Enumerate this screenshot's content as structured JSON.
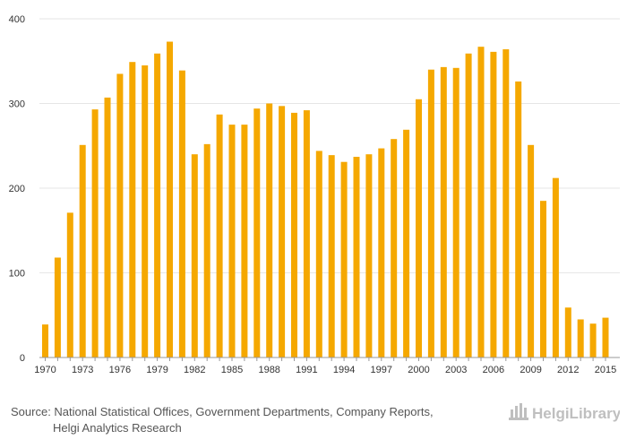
{
  "chart_data": {
    "type": "bar",
    "title": "",
    "xlabel": "",
    "ylabel": "",
    "ylim": [
      0,
      400
    ],
    "yticks": [
      0,
      100,
      200,
      300,
      400
    ],
    "grid": true,
    "bar_color": "#f5a800",
    "categories": [
      1970,
      1971,
      1972,
      1973,
      1974,
      1975,
      1976,
      1977,
      1978,
      1979,
      1980,
      1981,
      1982,
      1983,
      1984,
      1985,
      1986,
      1987,
      1988,
      1989,
      1990,
      1991,
      1992,
      1993,
      1994,
      1995,
      1996,
      1997,
      1998,
      1999,
      2000,
      2001,
      2002,
      2003,
      2004,
      2005,
      2006,
      2007,
      2008,
      2009,
      2010,
      2011,
      2012,
      2013,
      2014,
      2015
    ],
    "values": [
      39,
      118,
      171,
      251,
      293,
      307,
      335,
      349,
      345,
      359,
      373,
      339,
      240,
      252,
      287,
      275,
      275,
      294,
      300,
      297,
      289,
      292,
      244,
      239,
      231,
      237,
      240,
      247,
      258,
      269,
      305,
      340,
      343,
      342,
      359,
      367,
      361,
      364,
      326,
      251,
      185,
      212,
      59,
      45,
      40,
      47
    ],
    "xtick_labels": [
      "1970",
      "1973",
      "1976",
      "1979",
      "1982",
      "1985",
      "1988",
      "1991",
      "1994",
      "1997",
      "2000",
      "2003",
      "2006",
      "2009",
      "2012",
      "2015"
    ]
  },
  "footer": {
    "source_line1": "Source: National Statistical Offices, Government Departments, Company Reports,",
    "source_line2": "Helgi Analytics Research"
  },
  "logo": {
    "text": "HelgiLibrary",
    "color": "#bfbfbf"
  }
}
